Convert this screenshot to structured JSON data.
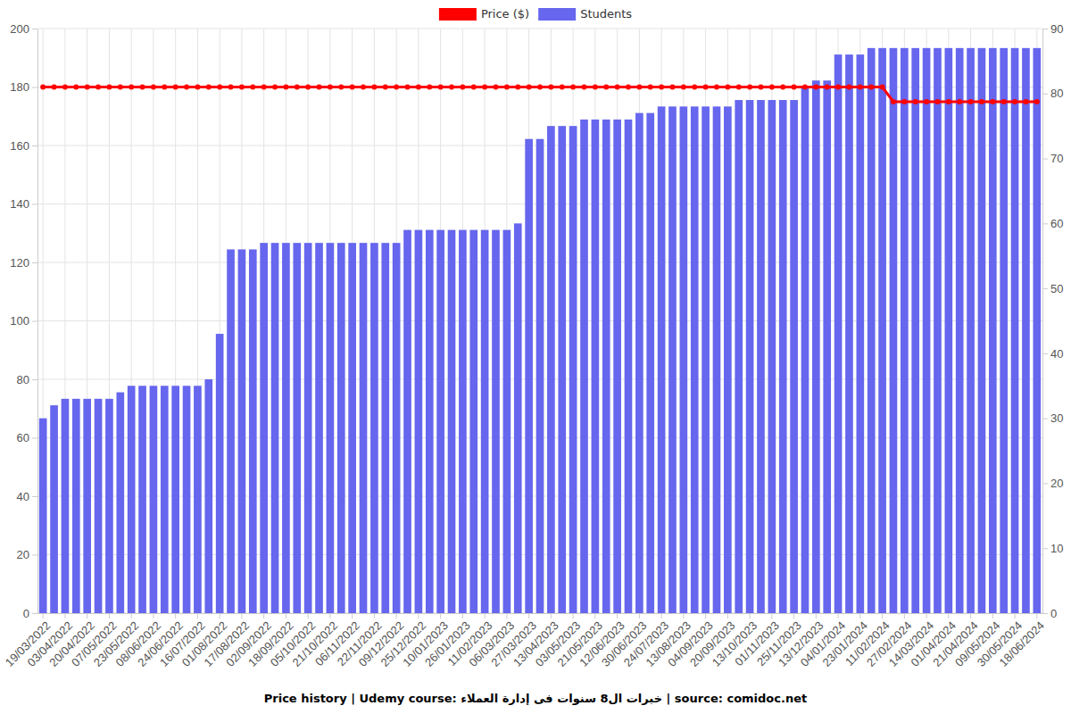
{
  "chart_data": {
    "type": "bar",
    "title": "Price history | Udemy course: خبرات ال8 سنوات فى  إدارة العملاء | source: comidoc.net",
    "categories": [
      "19/03/2022",
      null,
      "03/04/2022",
      null,
      "20/04/2022",
      null,
      "07/05/2022",
      null,
      "23/05/2022",
      null,
      "08/06/2022",
      null,
      "24/06/2022",
      null,
      "16/07/2022",
      null,
      "01/08/2022",
      null,
      "17/08/2022",
      null,
      "02/09/2022",
      null,
      "18/09/2022",
      null,
      "05/10/2022",
      null,
      "21/10/2022",
      null,
      "06/11/2022",
      null,
      "22/11/2022",
      null,
      "09/12/2022",
      null,
      "25/12/2022",
      null,
      "10/01/2023",
      null,
      "26/01/2023",
      null,
      "11/02/2023",
      null,
      "06/03/2023",
      null,
      "27/03/2023",
      null,
      "13/04/2023",
      null,
      "03/05/2023",
      null,
      "21/05/2023",
      null,
      "12/06/2023",
      null,
      "30/06/2023",
      null,
      "24/07/2023",
      null,
      "13/08/2023",
      null,
      "04/09/2023",
      null,
      "20/09/2023",
      null,
      "13/10/2023",
      null,
      "01/11/2023",
      null,
      "25/11/2023",
      null,
      "13/12/2023",
      null,
      "04/01/2024",
      null,
      "23/01/2024",
      null,
      "11/02/2024",
      null,
      "27/02/2024",
      null,
      "14/03/2024",
      null,
      "01/04/2024",
      null,
      "21/04/2024",
      null,
      "09/05/2024",
      null,
      "30/05/2024",
      null,
      "18/06/2024"
    ],
    "series": [
      {
        "name": "Price ($)",
        "type": "line",
        "color": "#ff0000",
        "marker": "circle",
        "values": [
          180,
          180,
          180,
          180,
          180,
          180,
          180,
          180,
          180,
          180,
          180,
          180,
          180,
          180,
          180,
          180,
          180,
          180,
          180,
          180,
          180,
          180,
          180,
          180,
          180,
          180,
          180,
          180,
          180,
          180,
          180,
          180,
          180,
          180,
          180,
          180,
          180,
          180,
          180,
          180,
          180,
          180,
          180,
          180,
          180,
          180,
          180,
          180,
          180,
          180,
          180,
          180,
          180,
          180,
          180,
          180,
          180,
          180,
          180,
          180,
          180,
          180,
          180,
          180,
          180,
          180,
          180,
          180,
          180,
          180,
          180,
          180,
          180,
          180,
          180,
          180,
          180,
          175,
          175,
          175,
          175,
          175,
          175,
          175,
          175,
          175,
          175,
          175,
          175,
          175,
          175
        ]
      },
      {
        "name": "Students",
        "type": "bar",
        "color": "#6666ee",
        "axis": "y2",
        "values": [
          30,
          32,
          33,
          33,
          33,
          33,
          33,
          34,
          35,
          35,
          35,
          35,
          35,
          35,
          35,
          36,
          43,
          56,
          56,
          56,
          57,
          57,
          57,
          57,
          57,
          57,
          57,
          57,
          57,
          57,
          57,
          57,
          57,
          59,
          59,
          59,
          59,
          59,
          59,
          59,
          59,
          59,
          59,
          60,
          73,
          73,
          75,
          75,
          75,
          76,
          76,
          76,
          76,
          76,
          77,
          77,
          78,
          78,
          78,
          78,
          78,
          78,
          78,
          79,
          79,
          79,
          79,
          79,
          79,
          81,
          82,
          82,
          86,
          86,
          86,
          87,
          87,
          87,
          87,
          87,
          87,
          87,
          87,
          87,
          87,
          87,
          87,
          87,
          87,
          87,
          87
        ]
      }
    ],
    "ylim": [
      0,
      200
    ],
    "yticks": [
      0,
      20,
      40,
      60,
      80,
      100,
      120,
      140,
      160,
      180,
      200
    ],
    "y2lim": [
      0,
      90
    ],
    "y2ticks": [
      0,
      10,
      20,
      30,
      40,
      50,
      60,
      70,
      80,
      90
    ],
    "grid": true,
    "legend": "top"
  }
}
